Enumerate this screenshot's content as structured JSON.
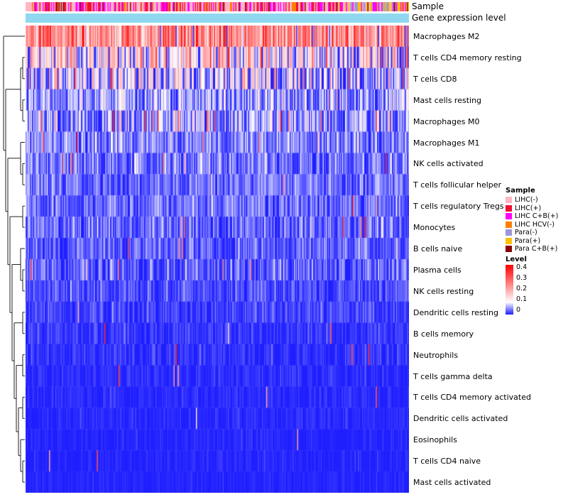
{
  "annotations": {
    "sample_label": "Sample",
    "expr_label": "Gene expression level",
    "expr_color": "#8FD8EF"
  },
  "legend_sample": {
    "title": "Sample",
    "items": [
      {
        "label": "LIHC(-)",
        "color": "#FFB5C5"
      },
      {
        "label": "LIHC(+)",
        "color": "#EE1133"
      },
      {
        "label": "LIHC C+B(+)",
        "color": "#FF00FF"
      },
      {
        "label": "LIHC HCV(-)",
        "color": "#FF7F00"
      },
      {
        "label": "Para(-)",
        "color": "#9D96D8"
      },
      {
        "label": "Para(+)",
        "color": "#FFC000"
      },
      {
        "label": "Para C+B(+)",
        "color": "#8B0000"
      }
    ]
  },
  "legend_level": {
    "title": "Level",
    "ticks": [
      "0.4",
      "0.3",
      "0.2",
      "0.1",
      "0"
    ],
    "top_color": "#FF0000",
    "mid_color": "#FFFFFF",
    "bottom_color": "#1E1EFF",
    "white_point_pct": 75
  },
  "chart_data": {
    "type": "heatmap",
    "title": "",
    "xlabel": "",
    "ylabel": "",
    "value_range": [
      0,
      0.4
    ],
    "n_columns_rendered": 360,
    "color_scale": {
      "0": "#1E1EFF",
      "0.1": "#FFFFFF",
      "0.4": "#FF0000"
    },
    "column_annotation_tracks": [
      "Sample",
      "Gene expression level"
    ],
    "rows": [
      {
        "label": "Macrophages M2",
        "approx_mean_level": 0.25,
        "spread": 0.08,
        "spike_prob": 0.03
      },
      {
        "label": "T cells CD4 memory resting",
        "approx_mean_level": 0.13,
        "spread": 0.09,
        "spike_prob": 0.02
      },
      {
        "label": "T cells CD8",
        "approx_mean_level": 0.09,
        "spread": 0.08,
        "spike_prob": 0.02
      },
      {
        "label": "Mast cells resting",
        "approx_mean_level": 0.055,
        "spread": 0.045,
        "spike_prob": 0.01
      },
      {
        "label": "Macrophages M0",
        "approx_mean_level": 0.05,
        "spread": 0.05,
        "spike_prob": 0.05
      },
      {
        "label": "Macrophages M1",
        "approx_mean_level": 0.045,
        "spread": 0.03,
        "spike_prob": 0.01
      },
      {
        "label": "NK cells activated",
        "approx_mean_level": 0.04,
        "spread": 0.03,
        "spike_prob": 0.01
      },
      {
        "label": "T cells follicular helper",
        "approx_mean_level": 0.035,
        "spread": 0.025,
        "spike_prob": 0.008
      },
      {
        "label": "T cells regulatory  Tregs",
        "approx_mean_level": 0.035,
        "spread": 0.025,
        "spike_prob": 0.008
      },
      {
        "label": "Monocytes",
        "approx_mean_level": 0.03,
        "spread": 0.03,
        "spike_prob": 0.02
      },
      {
        "label": "B cells naive",
        "approx_mean_level": 0.028,
        "spread": 0.022,
        "spike_prob": 0.01
      },
      {
        "label": "Plasma cells",
        "approx_mean_level": 0.027,
        "spread": 0.025,
        "spike_prob": 0.015
      },
      {
        "label": "NK cells resting",
        "approx_mean_level": 0.02,
        "spread": 0.018,
        "spike_prob": 0.005
      },
      {
        "label": "Dendritic cells resting",
        "approx_mean_level": 0.016,
        "spread": 0.015,
        "spike_prob": 0.004
      },
      {
        "label": "B cells memory",
        "approx_mean_level": 0.01,
        "spread": 0.012,
        "spike_prob": 0.004
      },
      {
        "label": "Neutrophils",
        "approx_mean_level": 0.009,
        "spread": 0.012,
        "spike_prob": 0.004
      },
      {
        "label": "T cells gamma delta",
        "approx_mean_level": 0.006,
        "spread": 0.009,
        "spike_prob": 0.002
      },
      {
        "label": "T cells CD4 memory activated",
        "approx_mean_level": 0.005,
        "spread": 0.008,
        "spike_prob": 0.002
      },
      {
        "label": "Dendritic cells activated",
        "approx_mean_level": 0.004,
        "spread": 0.007,
        "spike_prob": 0.001
      },
      {
        "label": "Eosinophils",
        "approx_mean_level": 0.003,
        "spread": 0.006,
        "spike_prob": 0.001
      },
      {
        "label": "T cells CD4 naive",
        "approx_mean_level": 0.003,
        "spread": 0.006,
        "spike_prob": 0.001
      },
      {
        "label": "Mast cells activated",
        "approx_mean_level": 0.002,
        "spread": 0.005,
        "spike_prob": 0.001
      }
    ]
  }
}
